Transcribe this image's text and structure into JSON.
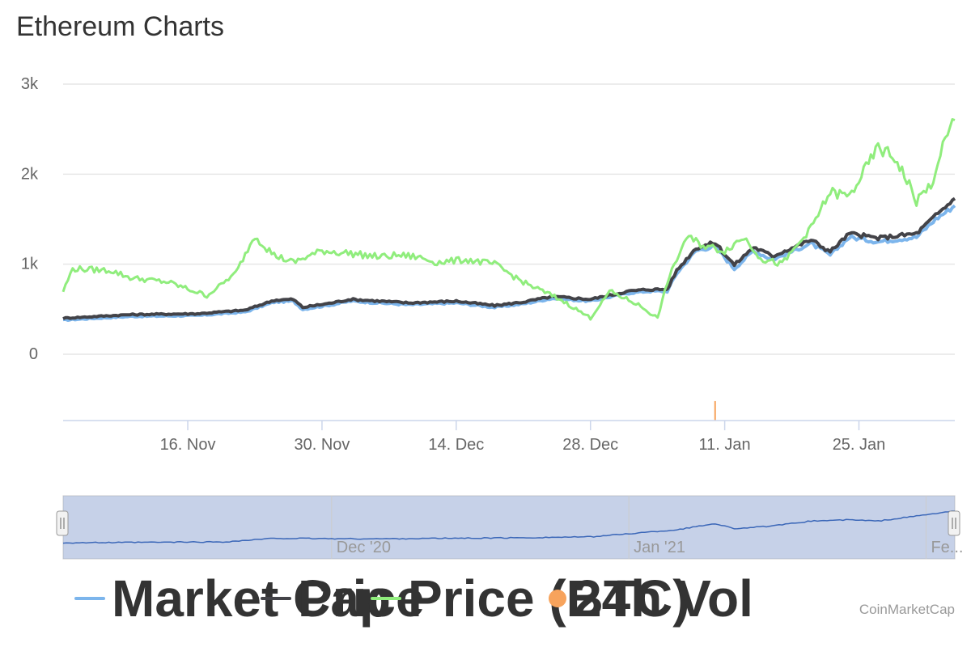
{
  "title": "Ethereum Charts",
  "credit": "CoinMarketCap",
  "chart_data": {
    "type": "line",
    "title": "Ethereum Charts",
    "x_start": "2020-11-03",
    "x_end": "2021-02-04",
    "x_ticks": [
      {
        "date": "2020-11-16",
        "label": "16. Nov"
      },
      {
        "date": "2020-11-30",
        "label": "30. Nov"
      },
      {
        "date": "2020-12-14",
        "label": "14. Dec"
      },
      {
        "date": "2020-12-28",
        "label": "28. Dec"
      },
      {
        "date": "2021-01-11",
        "label": "11. Jan"
      },
      {
        "date": "2021-01-25",
        "label": "25. Jan"
      }
    ],
    "y_ticks": [
      {
        "value": 0,
        "label": "0"
      },
      {
        "value": 1000,
        "label": "1k"
      },
      {
        "value": 2000,
        "label": "2k"
      },
      {
        "value": 3000,
        "label": "3k"
      }
    ],
    "ylim": [
      0,
      3000
    ],
    "grid": true,
    "legend_position": "bottom",
    "series": [
      {
        "name": "Market Cap",
        "color": "#7cb5ec",
        "points": [
          [
            "2020-11-03",
            380
          ],
          [
            "2020-11-10",
            420
          ],
          [
            "2020-11-17",
            430
          ],
          [
            "2020-11-22",
            470
          ],
          [
            "2020-11-25",
            580
          ],
          [
            "2020-11-27",
            590
          ],
          [
            "2020-11-28",
            500
          ],
          [
            "2020-12-01",
            550
          ],
          [
            "2020-12-03",
            590
          ],
          [
            "2020-12-09",
            550
          ],
          [
            "2020-12-14",
            570
          ],
          [
            "2020-12-18",
            520
          ],
          [
            "2020-12-21",
            560
          ],
          [
            "2020-12-24",
            620
          ],
          [
            "2020-12-28",
            590
          ],
          [
            "2021-01-01",
            680
          ],
          [
            "2021-01-03",
            700
          ],
          [
            "2021-01-05",
            700
          ],
          [
            "2021-01-06",
            900
          ],
          [
            "2021-01-08",
            1150
          ],
          [
            "2021-01-10",
            1200
          ],
          [
            "2021-01-12",
            950
          ],
          [
            "2021-01-14",
            1150
          ],
          [
            "2021-01-16",
            1050
          ],
          [
            "2021-01-20",
            1230
          ],
          [
            "2021-01-22",
            1100
          ],
          [
            "2021-01-24",
            1300
          ],
          [
            "2021-01-27",
            1250
          ],
          [
            "2021-01-31",
            1300
          ],
          [
            "2021-02-02",
            1500
          ],
          [
            "2021-02-04",
            1650
          ]
        ]
      },
      {
        "name": "Price",
        "color": "#434348",
        "points": [
          [
            "2020-11-03",
            400
          ],
          [
            "2020-11-10",
            440
          ],
          [
            "2020-11-17",
            450
          ],
          [
            "2020-11-22",
            490
          ],
          [
            "2020-11-25",
            600
          ],
          [
            "2020-11-27",
            610
          ],
          [
            "2020-11-28",
            520
          ],
          [
            "2020-12-01",
            570
          ],
          [
            "2020-12-03",
            610
          ],
          [
            "2020-12-09",
            570
          ],
          [
            "2020-12-14",
            590
          ],
          [
            "2020-12-18",
            540
          ],
          [
            "2020-12-21",
            580
          ],
          [
            "2020-12-24",
            640
          ],
          [
            "2020-12-28",
            610
          ],
          [
            "2021-01-01",
            700
          ],
          [
            "2021-01-03",
            720
          ],
          [
            "2021-01-05",
            720
          ],
          [
            "2021-01-06",
            930
          ],
          [
            "2021-01-08",
            1180
          ],
          [
            "2021-01-10",
            1240
          ],
          [
            "2021-01-12",
            990
          ],
          [
            "2021-01-14",
            1190
          ],
          [
            "2021-01-16",
            1090
          ],
          [
            "2021-01-20",
            1270
          ],
          [
            "2021-01-22",
            1140
          ],
          [
            "2021-01-24",
            1340
          ],
          [
            "2021-01-27",
            1290
          ],
          [
            "2021-01-31",
            1340
          ],
          [
            "2021-02-02",
            1540
          ],
          [
            "2021-02-04",
            1730
          ]
        ]
      },
      {
        "name": "Price (BTC)",
        "color": "#90ed7d",
        "points": [
          [
            "2020-11-03",
            700
          ],
          [
            "2020-11-04",
            950
          ],
          [
            "2020-11-08",
            930
          ],
          [
            "2020-11-10",
            850
          ],
          [
            "2020-11-14",
            800
          ],
          [
            "2020-11-18",
            650
          ],
          [
            "2020-11-21",
            900
          ],
          [
            "2020-11-23",
            1320
          ],
          [
            "2020-11-25",
            1100
          ],
          [
            "2020-11-27",
            1020
          ],
          [
            "2020-11-30",
            1150
          ],
          [
            "2020-12-03",
            1120
          ],
          [
            "2020-12-06",
            1080
          ],
          [
            "2020-12-08",
            1100
          ],
          [
            "2020-12-10",
            1080
          ],
          [
            "2020-12-12",
            1020
          ],
          [
            "2020-12-15",
            1050
          ],
          [
            "2020-12-18",
            1000
          ],
          [
            "2020-12-21",
            800
          ],
          [
            "2020-12-25",
            600
          ],
          [
            "2020-12-28",
            400
          ],
          [
            "2020-12-30",
            700
          ],
          [
            "2021-01-02",
            550
          ],
          [
            "2021-01-04",
            400
          ],
          [
            "2021-01-05",
            800
          ],
          [
            "2021-01-07",
            1300
          ],
          [
            "2021-01-09",
            1200
          ],
          [
            "2021-01-11",
            1150
          ],
          [
            "2021-01-13",
            1300
          ],
          [
            "2021-01-15",
            1050
          ],
          [
            "2021-01-17",
            1000
          ],
          [
            "2021-01-20",
            1400
          ],
          [
            "2021-01-22",
            1800
          ],
          [
            "2021-01-24",
            1750
          ],
          [
            "2021-01-27",
            2300
          ],
          [
            "2021-01-29",
            2150
          ],
          [
            "2021-01-31",
            1700
          ],
          [
            "2021-02-02",
            1950
          ],
          [
            "2021-02-03",
            2450
          ],
          [
            "2021-02-04",
            2600
          ]
        ]
      },
      {
        "name": "24h Vol",
        "color": "#f7a35c",
        "type": "column",
        "points": [
          [
            "2021-01-10",
            720
          ]
        ]
      }
    ],
    "navigator": {
      "labels": [
        "Dec '20",
        "Jan '21",
        "Fe..."
      ],
      "points": [
        [
          "2020-11-03",
          380
        ],
        [
          "2020-11-20",
          420
        ],
        [
          "2020-11-25",
          560
        ],
        [
          "2020-12-05",
          540
        ],
        [
          "2020-12-20",
          580
        ],
        [
          "2020-12-28",
          620
        ],
        [
          "2021-01-06",
          900
        ],
        [
          "2021-01-10",
          1150
        ],
        [
          "2021-01-12",
          950
        ],
        [
          "2021-01-16",
          1050
        ],
        [
          "2021-01-20",
          1250
        ],
        [
          "2021-01-24",
          1300
        ],
        [
          "2021-01-27",
          1250
        ],
        [
          "2021-02-04",
          1650
        ]
      ]
    }
  }
}
